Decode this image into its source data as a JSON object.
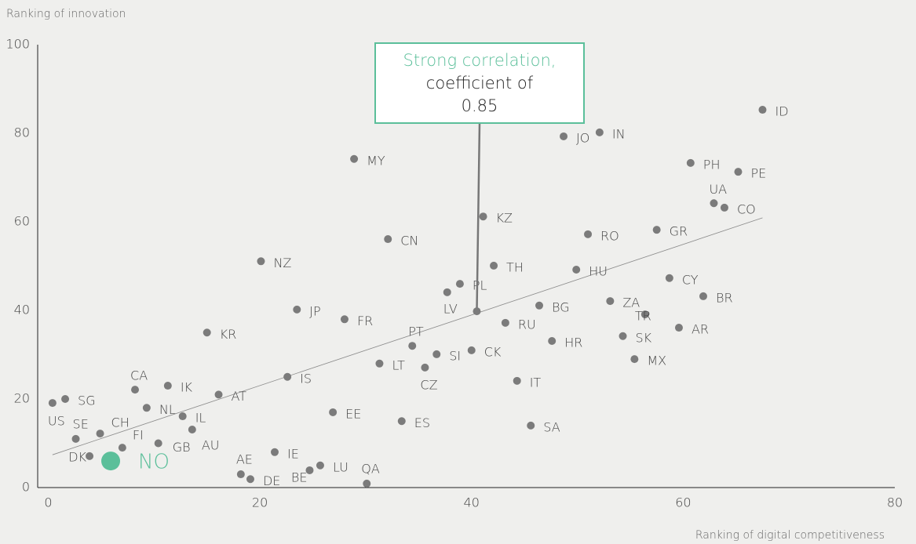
{
  "chart_data": {
    "type": "scatter",
    "y_label": "Ranking of innovation",
    "x_label": "Ranking of digital competitiveness",
    "xlim": [
      -1,
      80
    ],
    "ylim": [
      0,
      100
    ],
    "xticks": [
      0,
      20,
      40,
      60,
      80
    ],
    "yticks": [
      0,
      20,
      40,
      60,
      80,
      100
    ],
    "series": [
      {
        "color": "#7b7b7b",
        "points": [
          {
            "label": "US",
            "x": 0.4,
            "y": 19.1
          },
          {
            "label": "SG",
            "x": 1.6,
            "y": 20
          },
          {
            "label": "SE",
            "x": 2.6,
            "y": 11
          },
          {
            "label": "CH",
            "x": 4.9,
            "y": 12.2
          },
          {
            "label": "DK",
            "x": 3.9,
            "y": 7.1
          },
          {
            "label": "FI",
            "x": 7.0,
            "y": 9
          },
          {
            "label": "GB",
            "x": 10.4,
            "y": 10
          },
          {
            "label": "CA",
            "x": 8.2,
            "y": 22.1
          },
          {
            "label": "IK",
            "x": 11.3,
            "y": 23
          },
          {
            "label": "NL",
            "x": 9.3,
            "y": 18
          },
          {
            "label": "IL",
            "x": 12.7,
            "y": 16.1
          },
          {
            "label": "AU",
            "x": 13.6,
            "y": 13.1
          },
          {
            "label": "AT",
            "x": 16.1,
            "y": 21
          },
          {
            "label": "KR",
            "x": 15,
            "y": 35
          },
          {
            "label": "NZ",
            "x": 20.1,
            "y": 51.1
          },
          {
            "label": "JP",
            "x": 23.5,
            "y": 40.2
          },
          {
            "label": "FR",
            "x": 28,
            "y": 38
          },
          {
            "label": "MY",
            "x": 28.9,
            "y": 74.2
          },
          {
            "label": "CN",
            "x": 32.1,
            "y": 56.1
          },
          {
            "label": "IS",
            "x": 22.6,
            "y": 25
          },
          {
            "label": "AE",
            "x": 18.2,
            "y": 3
          },
          {
            "label": "DE",
            "x": 19.1,
            "y": 1.9
          },
          {
            "label": "IE",
            "x": 21.4,
            "y": 8
          },
          {
            "label": "BE",
            "x": 24.7,
            "y": 3.9
          },
          {
            "label": "LU",
            "x": 25.7,
            "y": 5
          },
          {
            "label": "QA",
            "x": 30.1,
            "y": 0.9
          },
          {
            "label": "EE",
            "x": 26.9,
            "y": 17
          },
          {
            "label": "ES",
            "x": 33.4,
            "y": 15
          },
          {
            "label": "LT",
            "x": 31.3,
            "y": 28
          },
          {
            "label": "CZ",
            "x": 35.6,
            "y": 27.1
          },
          {
            "label": "PT",
            "x": 34.4,
            "y": 32
          },
          {
            "label": "SI",
            "x": 36.7,
            "y": 30.1
          },
          {
            "label": "CK",
            "x": 40,
            "y": 31
          },
          {
            "label": "LV",
            "x": 37.7,
            "y": 44.1
          },
          {
            "label": "PL",
            "x": 38.9,
            "y": 46
          },
          {
            "label": "KZ",
            "x": 41.1,
            "y": 61.2
          },
          {
            "label": "TH",
            "x": 42.1,
            "y": 50.1
          },
          {
            "label": "RU",
            "x": 43.2,
            "y": 37.2
          },
          {
            "label": "IT",
            "x": 44.3,
            "y": 24.1
          },
          {
            "label": "SA",
            "x": 45.6,
            "y": 14
          },
          {
            "label": "BG",
            "x": 46.4,
            "y": 41.1
          },
          {
            "label": "HR",
            "x": 47.6,
            "y": 33.1
          },
          {
            "label": "JO",
            "x": 48.7,
            "y": 79.3
          },
          {
            "label": "IN",
            "x": 52.1,
            "y": 80.2
          },
          {
            "label": "HU",
            "x": 49.9,
            "y": 49.2
          },
          {
            "label": "RO",
            "x": 51,
            "y": 57.2
          },
          {
            "label": "ZA",
            "x": 53.1,
            "y": 42.1
          },
          {
            "label": "SK",
            "x": 54.3,
            "y": 34.2
          },
          {
            "label": "MX",
            "x": 55.4,
            "y": 29
          },
          {
            "label": "TR",
            "x": 56.4,
            "y": 39.1
          },
          {
            "label": "GR",
            "x": 57.5,
            "y": 58.2
          },
          {
            "label": "CY",
            "x": 58.7,
            "y": 47.3
          },
          {
            "label": "AR",
            "x": 59.6,
            "y": 36.1
          },
          {
            "label": "PH",
            "x": 60.7,
            "y": 73.3
          },
          {
            "label": "BR",
            "x": 61.9,
            "y": 43.2
          },
          {
            "label": "UA",
            "x": 62.9,
            "y": 64.2
          },
          {
            "label": "CO",
            "x": 63.9,
            "y": 63.2
          },
          {
            "label": "PE",
            "x": 65.2,
            "y": 71.3
          },
          {
            "label": "ID",
            "x": 67.5,
            "y": 85.3
          }
        ]
      },
      {
        "color": "#5bbf9a",
        "points": [
          {
            "label": "NO",
            "x": 5.9,
            "y": 6
          }
        ]
      }
    ],
    "trendline": {
      "x": [
        0.4,
        67.5
      ],
      "y": [
        7.4,
        60.9
      ]
    },
    "annotation": {
      "lines": [
        "Strong correlation,",
        "coefficient of",
        "0.85"
      ],
      "x": 40.5,
      "y": 39.8,
      "color": "#5bbf9a"
    }
  }
}
